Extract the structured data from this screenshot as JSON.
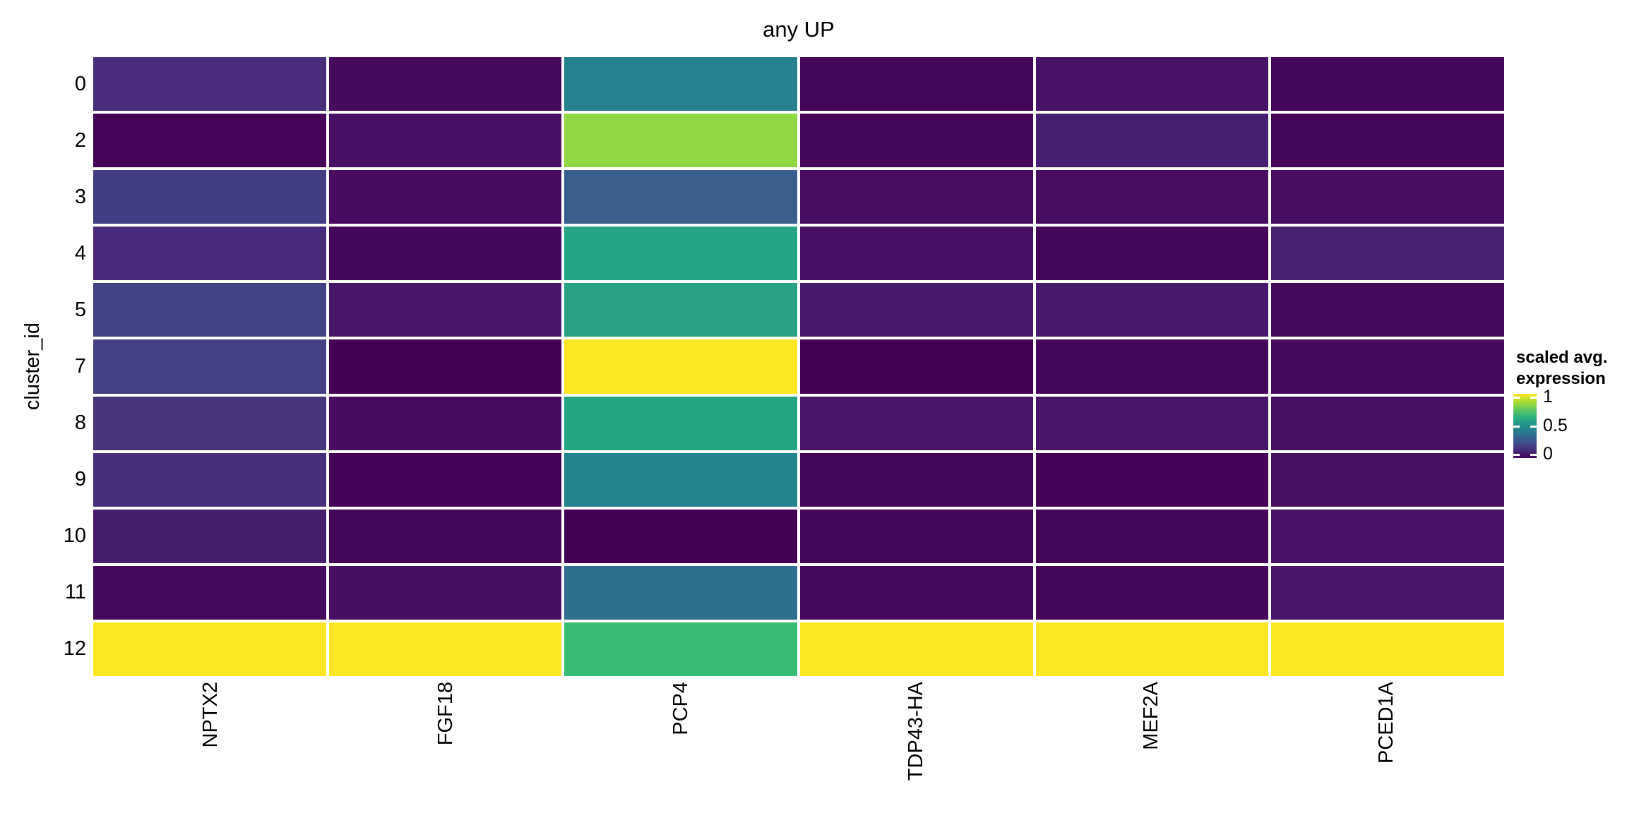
{
  "title": "any UP",
  "y_axis": {
    "title": "cluster_id",
    "ticks": [
      "0",
      "2",
      "3",
      "4",
      "5",
      "7",
      "8",
      "9",
      "10",
      "11",
      "12"
    ]
  },
  "x_axis": {
    "ticks": [
      "NPTX2",
      "FGF18",
      "PCP4",
      "TDP43-HA",
      "MEF2A",
      "PCED1A"
    ]
  },
  "legend": {
    "title_line1": "scaled avg.",
    "title_line2": "expression",
    "tick_labels": [
      "1",
      "0.5",
      "0"
    ],
    "tick_positions_pct": [
      5,
      50,
      95
    ],
    "gradient_stops_bottom_to_top": [
      "#440154",
      "#472D7B",
      "#3B528B",
      "#2C728E",
      "#21918C",
      "#27AD81",
      "#5EC962",
      "#AADC32",
      "#FDE725"
    ]
  },
  "chart_data": {
    "type": "heatmap",
    "title": "any UP",
    "xlabel": "",
    "ylabel": "cluster_id",
    "legend_title": "scaled avg. expression",
    "color_scale": {
      "name": "viridis",
      "domain": [
        0,
        1
      ],
      "legend_ticks": [
        0,
        0.5,
        1
      ]
    },
    "x_categories": [
      "NPTX2",
      "FGF18",
      "PCP4",
      "TDP43-HA",
      "MEF2A",
      "PCED1A"
    ],
    "y_categories": [
      "0",
      "2",
      "3",
      "4",
      "5",
      "7",
      "8",
      "9",
      "10",
      "11",
      "12"
    ],
    "values": [
      [
        0.12,
        0.03,
        0.41,
        0.02,
        0.05,
        0.02
      ],
      [
        0.01,
        0.05,
        0.83,
        0.01,
        0.09,
        0.01
      ],
      [
        0.18,
        0.03,
        0.27,
        0.04,
        0.04,
        0.04
      ],
      [
        0.1,
        0.01,
        0.59,
        0.05,
        0.02,
        0.09
      ],
      [
        0.19,
        0.06,
        0.58,
        0.07,
        0.07,
        0.03
      ],
      [
        0.17,
        0.0,
        1.0,
        0.0,
        0.02,
        0.03
      ],
      [
        0.13,
        0.03,
        0.59,
        0.06,
        0.06,
        0.05
      ],
      [
        0.12,
        0.01,
        0.44,
        0.02,
        0.01,
        0.04
      ],
      [
        0.08,
        0.01,
        0.0,
        0.01,
        0.01,
        0.05
      ],
      [
        0.03,
        0.04,
        0.34,
        0.03,
        0.02,
        0.05
      ],
      [
        1.0,
        1.0,
        0.67,
        1.0,
        1.0,
        1.0
      ]
    ],
    "cell_colors": [
      [
        "#472D7B",
        "#470B5E",
        "#27808E",
        "#45065A",
        "#481366",
        "#45075B"
      ],
      [
        "#450457",
        "#481064",
        "#8FD744",
        "#450559",
        "#482071",
        "#45055A"
      ],
      [
        "#433E84",
        "#470C5F",
        "#39608C",
        "#470D60",
        "#470D60",
        "#470E61"
      ],
      [
        "#472A7A",
        "#45055A",
        "#25A584",
        "#481165",
        "#45065A",
        "#482173"
      ],
      [
        "#424186",
        "#481669",
        "#27A383",
        "#481A6C",
        "#481A6C",
        "#470A5D"
      ],
      [
        "#453F83",
        "#440154",
        "#FDE725",
        "#440154",
        "#45075B",
        "#470B5E"
      ],
      [
        "#463578",
        "#470B5F",
        "#26A583",
        "#481669",
        "#481669",
        "#471164"
      ],
      [
        "#472F7C",
        "#440357",
        "#25858E",
        "#45065A",
        "#440356",
        "#471063"
      ],
      [
        "#471E6C",
        "#440458",
        "#440154",
        "#440457",
        "#440458",
        "#481366"
      ],
      [
        "#460A5D",
        "#470F62",
        "#2E6F8E",
        "#470A5E",
        "#450659",
        "#481568"
      ],
      [
        "#FDE725",
        "#FDE725",
        "#38BC74",
        "#FDE725",
        "#FDE725",
        "#FDE725"
      ]
    ],
    "grid_gap_color": "#FFFFFF",
    "layout": {
      "legend_position": "right",
      "x_tick_rotation_deg": 90,
      "grid": false
    }
  }
}
